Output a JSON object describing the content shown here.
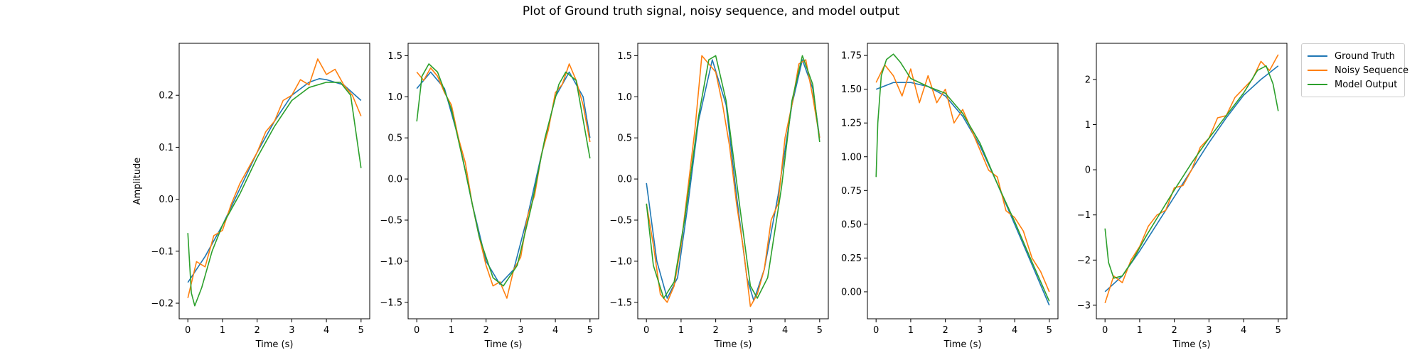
{
  "figure": {
    "title": "Plot of Ground truth signal, noisy sequence, and model output",
    "legend": [
      {
        "name": "Ground Truth",
        "color": "#1f77b4"
      },
      {
        "name": "Noisy Sequence",
        "color": "#ff7f0e"
      },
      {
        "name": "Model Output",
        "color": "#2ca02c"
      }
    ],
    "legend_placement": "outside-right"
  },
  "chart_data": [
    {
      "type": "line",
      "xlabel": "Time (s)",
      "ylabel": "Amplitude",
      "xlim": [
        -0.25,
        5.25
      ],
      "ylim": [
        -0.23,
        0.3
      ],
      "xticks": [
        0,
        1,
        2,
        3,
        4,
        5
      ],
      "yticks": [
        -0.2,
        -0.1,
        0.0,
        0.1,
        0.2
      ],
      "ytick_labels": [
        "−0.2",
        "−0.1",
        "0.0",
        "0.1",
        "0.2"
      ],
      "series": [
        {
          "name": "Ground Truth",
          "x": [
            0,
            0.5,
            1,
            1.5,
            2,
            2.5,
            3,
            3.5,
            3.8,
            4,
            4.5,
            5
          ],
          "values": [
            -0.16,
            -0.11,
            -0.05,
            0.02,
            0.09,
            0.15,
            0.2,
            0.225,
            0.232,
            0.23,
            0.22,
            0.19
          ]
        },
        {
          "name": "Noisy Sequence",
          "x": [
            0,
            0.25,
            0.5,
            0.75,
            1,
            1.25,
            1.5,
            1.75,
            2,
            2.25,
            2.5,
            2.75,
            3,
            3.25,
            3.5,
            3.75,
            4,
            4.25,
            4.5,
            4.75,
            5
          ],
          "values": [
            -0.19,
            -0.12,
            -0.13,
            -0.07,
            -0.06,
            -0.01,
            0.03,
            0.06,
            0.09,
            0.13,
            0.15,
            0.19,
            0.2,
            0.23,
            0.22,
            0.27,
            0.24,
            0.25,
            0.22,
            0.2,
            0.16
          ]
        },
        {
          "name": "Model Output",
          "x": [
            0,
            0.1,
            0.2,
            0.4,
            0.7,
            1,
            1.5,
            2,
            2.5,
            3,
            3.5,
            4,
            4.4,
            4.7,
            5
          ],
          "values": [
            -0.065,
            -0.18,
            -0.205,
            -0.17,
            -0.1,
            -0.05,
            0.01,
            0.08,
            0.14,
            0.19,
            0.215,
            0.225,
            0.225,
            0.2,
            0.06
          ]
        }
      ]
    },
    {
      "type": "line",
      "xlabel": "Time (s)",
      "ylabel": "",
      "xlim": [
        -0.25,
        5.25
      ],
      "ylim": [
        -1.7,
        1.65
      ],
      "xticks": [
        0,
        1,
        2,
        3,
        4,
        5
      ],
      "yticks": [
        -1.5,
        -1.0,
        -0.5,
        0.0,
        0.5,
        1.0,
        1.5
      ],
      "ytick_labels": [
        "−1.5",
        "−1.0",
        "−0.5",
        "0.0",
        "0.5",
        "1.0",
        "1.5"
      ],
      "series": [
        {
          "name": "Ground Truth",
          "x": [
            0,
            0.4,
            0.8,
            1.2,
            1.6,
            2,
            2.4,
            2.8,
            3.2,
            3.6,
            4,
            4.4,
            4.8,
            5
          ],
          "values": [
            1.1,
            1.3,
            1.1,
            0.5,
            -0.3,
            -1.0,
            -1.28,
            -1.1,
            -0.45,
            0.3,
            1.0,
            1.3,
            1.0,
            0.5
          ]
        },
        {
          "name": "Noisy Sequence",
          "x": [
            0,
            0.2,
            0.4,
            0.6,
            0.8,
            1,
            1.2,
            1.4,
            1.6,
            1.8,
            2,
            2.2,
            2.4,
            2.6,
            2.8,
            3,
            3.2,
            3.4,
            3.6,
            3.8,
            4,
            4.2,
            4.4,
            4.6,
            4.8,
            5
          ],
          "values": [
            1.3,
            1.2,
            1.35,
            1.25,
            1.05,
            0.9,
            0.5,
            0.2,
            -0.3,
            -0.7,
            -1.05,
            -1.3,
            -1.25,
            -1.45,
            -1.1,
            -0.95,
            -0.45,
            -0.2,
            0.3,
            0.6,
            1.05,
            1.15,
            1.4,
            1.2,
            0.9,
            0.45
          ]
        },
        {
          "name": "Model Output",
          "x": [
            0,
            0.15,
            0.35,
            0.6,
            1,
            1.4,
            1.8,
            2.2,
            2.5,
            2.9,
            3.3,
            3.7,
            4.1,
            4.3,
            4.6,
            5
          ],
          "values": [
            0.7,
            1.25,
            1.4,
            1.3,
            0.85,
            0.1,
            -0.7,
            -1.2,
            -1.3,
            -1.05,
            -0.35,
            0.5,
            1.15,
            1.3,
            1.2,
            0.25
          ]
        }
      ]
    },
    {
      "type": "line",
      "xlabel": "Time (s)",
      "ylabel": "",
      "xlim": [
        -0.25,
        5.25
      ],
      "ylim": [
        -1.7,
        1.65
      ],
      "xticks": [
        0,
        1,
        2,
        3,
        4,
        5
      ],
      "yticks": [
        -1.5,
        -1.0,
        -0.5,
        0.0,
        0.5,
        1.0,
        1.5
      ],
      "ytick_labels": [
        "−1.5",
        "−1.0",
        "−0.5",
        "0.0",
        "0.5",
        "1.0",
        "1.5"
      ],
      "series": [
        {
          "name": "Ground Truth",
          "x": [
            0,
            0.3,
            0.6,
            0.9,
            1.2,
            1.5,
            1.9,
            2.3,
            2.6,
            2.9,
            3.1,
            3.4,
            3.8,
            4.2,
            4.5,
            4.8,
            5
          ],
          "values": [
            -0.05,
            -1.0,
            -1.45,
            -1.2,
            -0.3,
            0.7,
            1.45,
            0.9,
            -0.2,
            -1.2,
            -1.48,
            -1.1,
            -0.2,
            0.9,
            1.45,
            1.1,
            0.5
          ]
        },
        {
          "name": "Noisy Sequence",
          "x": [
            0,
            0.2,
            0.4,
            0.6,
            0.8,
            1,
            1.2,
            1.4,
            1.6,
            1.8,
            2,
            2.2,
            2.4,
            2.6,
            2.8,
            3,
            3.2,
            3.4,
            3.6,
            3.8,
            4,
            4.2,
            4.4,
            4.6,
            4.8,
            5
          ],
          "values": [
            -0.3,
            -0.8,
            -1.4,
            -1.5,
            -1.3,
            -0.8,
            -0.1,
            0.6,
            1.5,
            1.4,
            1.3,
            0.9,
            0.4,
            -0.3,
            -0.85,
            -1.55,
            -1.4,
            -1.1,
            -0.5,
            -0.3,
            0.5,
            0.9,
            1.4,
            1.45,
            1.0,
            0.5
          ]
        },
        {
          "name": "Model Output",
          "x": [
            0,
            0.2,
            0.5,
            0.8,
            1.1,
            1.5,
            1.8,
            2.0,
            2.3,
            2.7,
            3.0,
            3.2,
            3.5,
            3.9,
            4.2,
            4.5,
            4.8,
            5
          ],
          "values": [
            -0.3,
            -1.05,
            -1.45,
            -1.25,
            -0.5,
            0.75,
            1.45,
            1.5,
            0.95,
            -0.35,
            -1.3,
            -1.45,
            -1.2,
            -0.1,
            0.95,
            1.5,
            1.15,
            0.45
          ]
        }
      ]
    },
    {
      "type": "line",
      "xlabel": "Time (s)",
      "ylabel": "",
      "xlim": [
        -0.25,
        5.25
      ],
      "ylim": [
        -0.2,
        1.84
      ],
      "xticks": [
        0,
        1,
        2,
        3,
        4,
        5
      ],
      "yticks": [
        0.0,
        0.25,
        0.5,
        0.75,
        1.0,
        1.25,
        1.5,
        1.75
      ],
      "ytick_labels": [
        "0.00",
        "0.25",
        "0.50",
        "0.75",
        "1.00",
        "1.25",
        "1.50",
        "1.75"
      ],
      "series": [
        {
          "name": "Ground Truth",
          "x": [
            0,
            0.5,
            1,
            1.5,
            2,
            2.5,
            3,
            3.5,
            4,
            4.5,
            5
          ],
          "values": [
            1.5,
            1.55,
            1.55,
            1.52,
            1.45,
            1.3,
            1.08,
            0.8,
            0.5,
            0.2,
            -0.1
          ]
        },
        {
          "name": "Noisy Sequence",
          "x": [
            0,
            0.25,
            0.5,
            0.75,
            1,
            1.25,
            1.5,
            1.75,
            2,
            2.25,
            2.5,
            2.75,
            3,
            3.25,
            3.5,
            3.75,
            4,
            4.25,
            4.5,
            4.75,
            5
          ],
          "values": [
            1.55,
            1.68,
            1.6,
            1.45,
            1.65,
            1.4,
            1.6,
            1.4,
            1.5,
            1.25,
            1.35,
            1.2,
            1.05,
            0.9,
            0.85,
            0.6,
            0.55,
            0.45,
            0.25,
            0.15,
            0.0
          ]
        },
        {
          "name": "Model Output",
          "x": [
            0,
            0.05,
            0.15,
            0.3,
            0.5,
            0.7,
            1,
            1.5,
            2,
            2.5,
            3,
            3.5,
            4,
            4.5,
            5
          ],
          "values": [
            0.85,
            1.25,
            1.6,
            1.72,
            1.76,
            1.7,
            1.58,
            1.52,
            1.47,
            1.32,
            1.1,
            0.8,
            0.52,
            0.22,
            -0.07
          ]
        }
      ]
    },
    {
      "type": "line",
      "xlabel": "Time (s)",
      "ylabel": "",
      "xlim": [
        -0.25,
        5.25
      ],
      "ylim": [
        -3.3,
        2.8
      ],
      "xticks": [
        0,
        1,
        2,
        3,
        4,
        5
      ],
      "yticks": [
        -3,
        -2,
        -1,
        0,
        1,
        2
      ],
      "ytick_labels": [
        "−3",
        "−2",
        "−1",
        "0",
        "1",
        "2"
      ],
      "series": [
        {
          "name": "Ground Truth",
          "x": [
            0,
            0.5,
            1,
            1.5,
            2,
            2.5,
            3,
            3.5,
            4,
            4.5,
            5
          ],
          "values": [
            -2.7,
            -2.35,
            -1.8,
            -1.2,
            -0.6,
            0.0,
            0.6,
            1.15,
            1.65,
            2.0,
            2.3
          ]
        },
        {
          "name": "Noisy Sequence",
          "x": [
            0,
            0.25,
            0.5,
            0.75,
            1,
            1.25,
            1.5,
            1.75,
            2,
            2.25,
            2.5,
            2.75,
            3,
            3.25,
            3.5,
            3.75,
            4,
            4.25,
            4.5,
            4.75,
            5
          ],
          "values": [
            -2.95,
            -2.35,
            -2.5,
            -2.0,
            -1.7,
            -1.25,
            -1.0,
            -0.9,
            -0.4,
            -0.35,
            0.0,
            0.5,
            0.7,
            1.15,
            1.2,
            1.6,
            1.8,
            2.0,
            2.4,
            2.2,
            2.55
          ]
        },
        {
          "name": "Model Output",
          "x": [
            0,
            0.1,
            0.25,
            0.5,
            0.8,
            1.2,
            1.6,
            2,
            2.5,
            3,
            3.5,
            4,
            4.4,
            4.65,
            4.85,
            5
          ],
          "values": [
            -1.3,
            -2.05,
            -2.4,
            -2.35,
            -2.0,
            -1.45,
            -0.95,
            -0.45,
            0.15,
            0.7,
            1.2,
            1.7,
            2.2,
            2.3,
            1.9,
            1.3
          ]
        }
      ]
    }
  ]
}
